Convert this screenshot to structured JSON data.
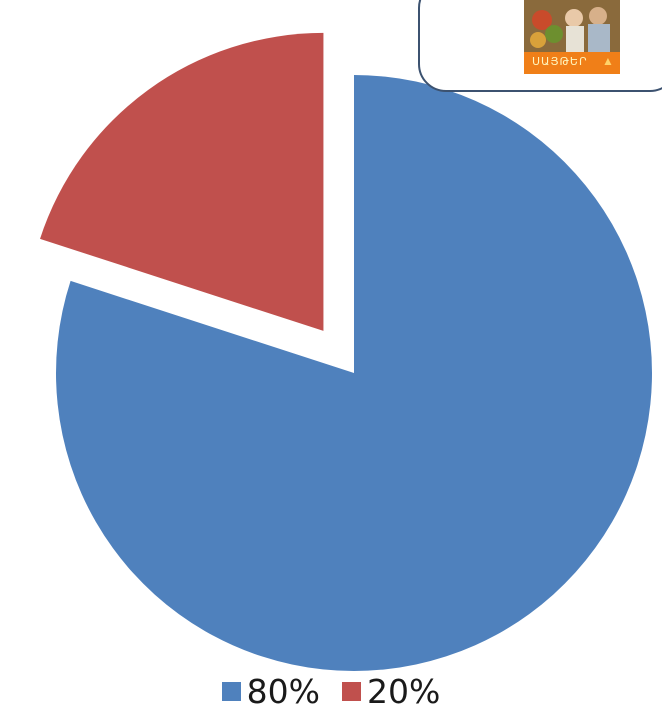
{
  "chart_data": {
    "type": "pie",
    "categories": [
      "80%",
      "20%"
    ],
    "values": [
      80,
      20
    ],
    "colors": [
      "#4f81bd",
      "#c0504d"
    ],
    "exploded": [
      false,
      true
    ],
    "title": "",
    "legend_position": "bottom"
  },
  "inset_image": {
    "kind": "photo",
    "text": "ՍԱՅԹԵՐ",
    "icon": "flame-icon"
  }
}
